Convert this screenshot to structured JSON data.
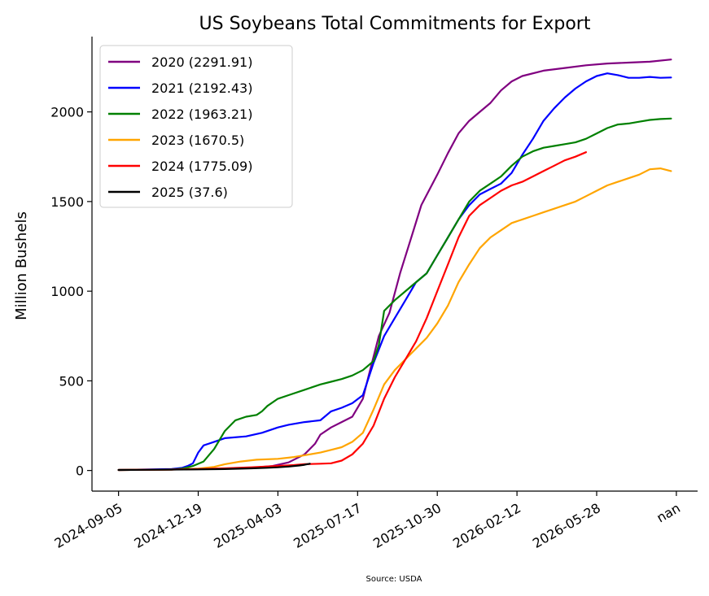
{
  "chart_data": {
    "type": "line",
    "title": "US Soybeans Total Commitments for Export",
    "ylabel": "Million Bushels",
    "xlabel": "",
    "source": "Source: USDA",
    "x_tick_labels": [
      "2024-09-05",
      "2024-12-19",
      "2025-04-03",
      "2025-07-17",
      "2025-10-30",
      "2026-02-12",
      "2026-05-28",
      "nan"
    ],
    "x_tick_positions": [
      0,
      15,
      30,
      45,
      60,
      75,
      90,
      105
    ],
    "y_ticks": [
      0,
      500,
      1000,
      1500,
      2000
    ],
    "xlim": [
      -5,
      109
    ],
    "ylim": [
      -115,
      2420
    ],
    "grid": false,
    "legend_position": "top-left",
    "series": [
      {
        "name": "2020 (2291.91)",
        "color": "#800080",
        "x": [
          0,
          10,
          12,
          15,
          20,
          25,
          29,
          32,
          35,
          37,
          38,
          40,
          42,
          44,
          46,
          47,
          49,
          51,
          53,
          55,
          57,
          60,
          62,
          64,
          66,
          68,
          70,
          72,
          74,
          76,
          80,
          84,
          88,
          92,
          96,
          100,
          104
        ],
        "y": [
          3,
          5,
          8,
          8,
          10,
          15,
          25,
          45,
          90,
          150,
          200,
          240,
          270,
          300,
          400,
          520,
          750,
          880,
          1100,
          1290,
          1480,
          1650,
          1770,
          1880,
          1950,
          2000,
          2050,
          2120,
          2170,
          2200,
          2230,
          2245,
          2260,
          2270,
          2275,
          2280,
          2292
        ]
      },
      {
        "name": "2021 (2192.43)",
        "color": "#0000ff",
        "x": [
          0,
          10,
          12,
          13,
          14,
          15,
          16,
          18,
          20,
          24,
          27,
          30,
          32,
          35,
          38,
          40,
          42,
          44,
          46,
          48,
          50,
          52,
          54,
          56,
          58,
          60,
          62,
          64,
          66,
          68,
          70,
          72,
          74,
          76,
          78,
          80,
          82,
          84,
          86,
          88,
          90,
          92,
          94,
          96,
          98,
          100,
          102,
          104
        ],
        "y": [
          3,
          8,
          15,
          25,
          40,
          100,
          140,
          160,
          180,
          190,
          210,
          240,
          255,
          270,
          280,
          330,
          350,
          375,
          420,
          600,
          750,
          850,
          950,
          1050,
          1100,
          1200,
          1300,
          1400,
          1480,
          1540,
          1570,
          1600,
          1660,
          1760,
          1850,
          1950,
          2020,
          2080,
          2130,
          2170,
          2200,
          2215,
          2205,
          2190,
          2190,
          2195,
          2190,
          2192
        ]
      },
      {
        "name": "2022 (1963.21)",
        "color": "#008000",
        "x": [
          0,
          10,
          12,
          14,
          16,
          18,
          20,
          22,
          24,
          26,
          27,
          28,
          30,
          32,
          35,
          38,
          40,
          42,
          44,
          46,
          48,
          49,
          50,
          52,
          54,
          56,
          58,
          60,
          62,
          64,
          66,
          68,
          70,
          72,
          74,
          76,
          78,
          80,
          82,
          84,
          86,
          88,
          90,
          92,
          94,
          96,
          98,
          100,
          102,
          104
        ],
        "y": [
          3,
          5,
          10,
          25,
          50,
          120,
          220,
          280,
          300,
          310,
          330,
          360,
          400,
          420,
          450,
          480,
          495,
          510,
          530,
          560,
          610,
          700,
          890,
          950,
          1000,
          1050,
          1100,
          1200,
          1300,
          1400,
          1500,
          1560,
          1600,
          1640,
          1700,
          1750,
          1780,
          1800,
          1810,
          1820,
          1830,
          1850,
          1880,
          1910,
          1930,
          1935,
          1945,
          1955,
          1960,
          1963
        ]
      },
      {
        "name": "2023 (1670.5)",
        "color": "#ffa500",
        "x": [
          0,
          10,
          15,
          18,
          20,
          23,
          26,
          30,
          33,
          35,
          38,
          40,
          42,
          44,
          46,
          48,
          50,
          52,
          54,
          56,
          58,
          60,
          62,
          64,
          66,
          68,
          70,
          72,
          74,
          76,
          78,
          80,
          82,
          84,
          86,
          88,
          90,
          92,
          94,
          96,
          98,
          100,
          102,
          104
        ],
        "y": [
          3,
          5,
          10,
          20,
          35,
          50,
          60,
          65,
          75,
          85,
          100,
          115,
          130,
          160,
          210,
          340,
          480,
          560,
          620,
          680,
          740,
          820,
          920,
          1050,
          1150,
          1240,
          1300,
          1340,
          1380,
          1400,
          1420,
          1440,
          1460,
          1480,
          1500,
          1530,
          1560,
          1590,
          1610,
          1630,
          1650,
          1680,
          1685,
          1670
        ]
      },
      {
        "name": "2024 (1775.09)",
        "color": "#ff0000",
        "x": [
          0,
          10,
          15,
          20,
          25,
          30,
          33,
          35,
          38,
          40,
          42,
          44,
          46,
          48,
          50,
          52,
          54,
          56,
          58,
          60,
          62,
          64,
          66,
          68,
          70,
          72,
          74,
          76,
          78,
          80,
          82,
          84,
          86,
          88
        ],
        "y": [
          3,
          5,
          8,
          12,
          18,
          25,
          30,
          35,
          38,
          40,
          55,
          90,
          150,
          250,
          400,
          520,
          620,
          720,
          850,
          1000,
          1150,
          1300,
          1420,
          1480,
          1520,
          1560,
          1590,
          1610,
          1640,
          1670,
          1700,
          1730,
          1750,
          1775
        ]
      },
      {
        "name": "2025 (37.6)",
        "color": "#000000",
        "x": [
          0,
          5,
          10,
          15,
          20,
          25,
          28,
          30,
          32,
          34,
          35,
          36
        ],
        "y": [
          3,
          4,
          5,
          6,
          8,
          12,
          15,
          18,
          22,
          28,
          32,
          37.6
        ]
      }
    ]
  }
}
